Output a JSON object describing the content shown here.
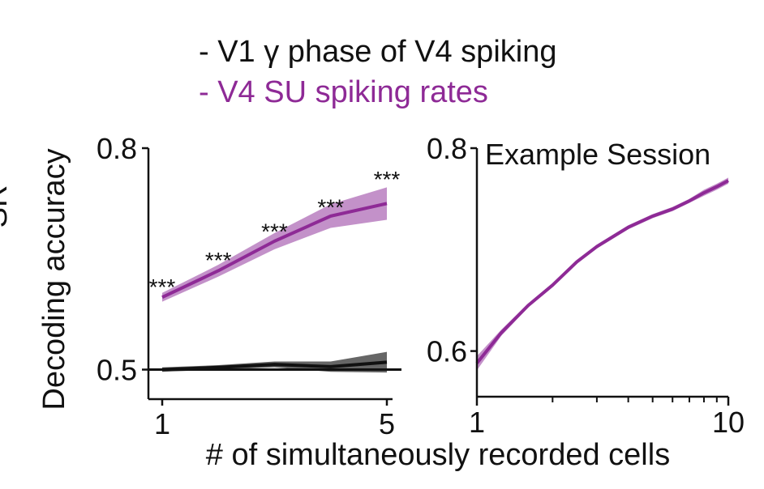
{
  "legend": [
    {
      "label": "- V1 γ phase of V4 spiking",
      "color": "#111111"
    },
    {
      "label": "- V4 SU spiking rates",
      "color": "#8e2a96"
    }
  ],
  "side_label": "SR",
  "shared_xlabel": "# of simultaneously recorded cells",
  "colors": {
    "purple": "#8e2a96",
    "purple_band": "#b97ec0",
    "black": "#111111",
    "gray_band": "#555555"
  },
  "chart_data": [
    {
      "type": "line",
      "ylabel": "Decoding accuracy",
      "xlim": [
        1,
        5
      ],
      "ylim": [
        0.46,
        0.8
      ],
      "yticks": [
        {
          "v": 0.5,
          "label": "0.5"
        },
        {
          "v": 0.8,
          "label": "0.8"
        }
      ],
      "xticks": [
        {
          "v": 1,
          "label": "1"
        },
        {
          "v": 5,
          "label": "5"
        }
      ],
      "reference_line": 0.5,
      "series": [
        {
          "name": "V4 SU spiking rates",
          "color": "#8e2a96",
          "x": [
            1,
            2,
            3,
            4,
            5
          ],
          "y": [
            0.598,
            0.634,
            0.674,
            0.708,
            0.725
          ],
          "err": [
            0.006,
            0.008,
            0.011,
            0.016,
            0.022
          ]
        },
        {
          "name": "V1 γ phase of V4 spiking",
          "color": "#111111",
          "x": [
            1,
            2,
            3,
            4,
            5
          ],
          "y": [
            0.5,
            0.503,
            0.507,
            0.504,
            0.51
          ],
          "err": [
            0.003,
            0.003,
            0.004,
            0.007,
            0.014
          ]
        }
      ],
      "annotations": [
        {
          "x": 1,
          "y": 0.606,
          "text": "***"
        },
        {
          "x": 2,
          "y": 0.642,
          "text": "***"
        },
        {
          "x": 3,
          "y": 0.681,
          "text": "***"
        },
        {
          "x": 4,
          "y": 0.714,
          "text": "***"
        },
        {
          "x": 5,
          "y": 0.752,
          "text": "***"
        }
      ]
    },
    {
      "type": "line",
      "title": "Example Session",
      "xscale": "log",
      "xlim": [
        1,
        10
      ],
      "ylim": [
        0.555,
        0.8
      ],
      "yticks": [
        {
          "v": 0.6,
          "label": "0.6"
        },
        {
          "v": 0.8,
          "label": "0.8"
        }
      ],
      "xticks": [
        {
          "v": 1,
          "label": "1"
        },
        {
          "v": 10,
          "label": "10"
        }
      ],
      "minor_xticks": [
        2,
        3,
        4,
        5,
        6,
        7,
        8,
        9
      ],
      "series": [
        {
          "name": "V4 SU spiking rates",
          "color": "#8e2a96",
          "x": [
            1,
            1.25,
            1.6,
            2,
            2.5,
            3,
            4,
            5,
            6,
            7,
            8,
            9,
            10
          ],
          "y": [
            0.588,
            0.618,
            0.645,
            0.665,
            0.688,
            0.703,
            0.722,
            0.733,
            0.74,
            0.748,
            0.756,
            0.762,
            0.768
          ],
          "err": [
            0.007,
            0.003,
            0.002,
            0.002,
            0.002,
            0.002,
            0.002,
            0.002,
            0.002,
            0.002,
            0.003,
            0.003,
            0.003
          ]
        }
      ]
    }
  ]
}
